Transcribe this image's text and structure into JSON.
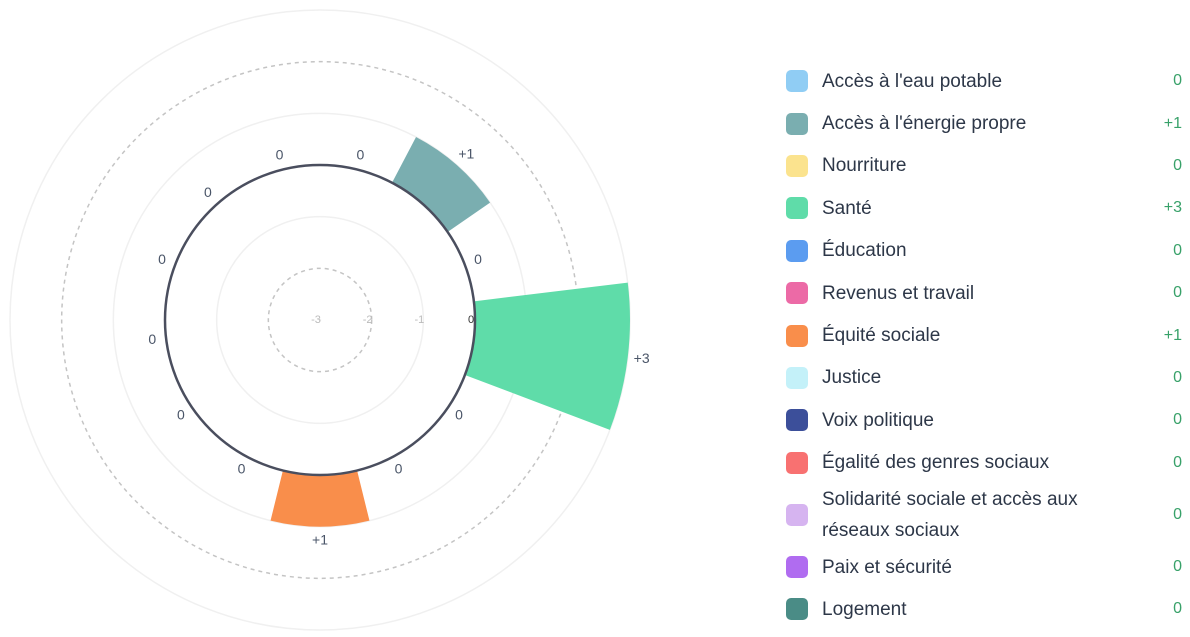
{
  "chart_data": {
    "type": "polar-bar",
    "categories": [
      "Accès à l'eau potable",
      "Accès à l'énergie propre",
      "Nourriture",
      "Santé",
      "Éducation",
      "Revenus et travail",
      "Équité sociale",
      "Justice",
      "Voix politique",
      "Égalité des genres sociaux",
      "Solidarité sociale et accès aux réseaux sociaux",
      "Paix et sécurité",
      "Logement"
    ],
    "values": [
      0,
      1,
      0,
      3,
      0,
      0,
      1,
      0,
      0,
      0,
      0,
      0,
      0
    ],
    "value_labels": [
      "0",
      "+1",
      "0",
      "+3",
      "0",
      "0",
      "+1",
      "0",
      "0",
      "0",
      "0",
      "0",
      "0"
    ],
    "colors": [
      "#90cdf4",
      "#7aaeb0",
      "#fbe38e",
      "#5fdca9",
      "#5b9cf0",
      "#ec6aa6",
      "#f98e4b",
      "#c4f1f9",
      "#3c4f9a",
      "#f87171",
      "#d6b4f0",
      "#b06cf0",
      "#4a8c86"
    ],
    "rlim": [
      -3,
      3
    ],
    "rticks": [
      -3,
      -2,
      -1,
      0
    ],
    "grid_rings": [
      -3,
      -2,
      -1,
      0,
      1,
      2,
      3
    ],
    "dashed_rings": [
      -2,
      2
    ]
  }
}
